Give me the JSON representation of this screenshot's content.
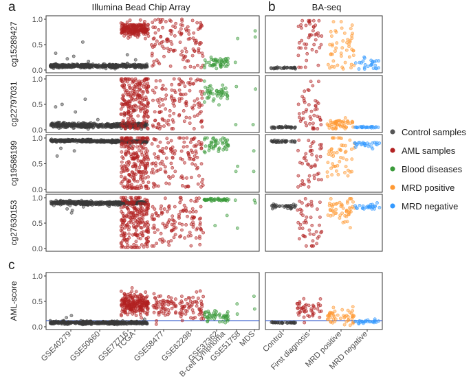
{
  "panel_labels": {
    "a": "a",
    "b": "b",
    "c": "c"
  },
  "titles": {
    "illumina": "Illumina Bead Chip Array",
    "baseq": "BA-seq"
  },
  "legend": [
    {
      "label": "Control samples",
      "color": "#555555"
    },
    {
      "label": "AML samples",
      "color": "#b22222"
    },
    {
      "label": "Blood diseases",
      "color": "#3a9a3a"
    },
    {
      "label": "MRD positive",
      "color": "#ff9933"
    },
    {
      "label": "MRD negative",
      "color": "#3399ff"
    }
  ],
  "chart_data": {
    "type": "scatter",
    "title": "Illumina Bead Chip Array / BA-seq methylation strip plots",
    "groups_left": [
      "GSE40279",
      "GSE50660",
      "GSE77716",
      "TCGA",
      "GSE58477",
      "GSE62298",
      "GSE37362",
      "GSE51758",
      "MDS"
    ],
    "groups_left_labels": [
      "GSE40279",
      "GSE50660",
      "GSE77716",
      "TCGA",
      "GSE58477",
      "GSE62298",
      "GSE37362",
      "B-cell Lymphoma",
      "GSE51758",
      "MDS"
    ],
    "groups_right": [
      "Control",
      "First diagnosis",
      "MRD positive",
      "MRD negative"
    ],
    "group_category_left": [
      "Control samples",
      "Control samples",
      "Control samples",
      "AML samples",
      "AML samples",
      "AML samples",
      "Blood diseases",
      "Blood diseases",
      "Blood diseases"
    ],
    "group_category_right": [
      "Control samples",
      "AML samples",
      "MRD positive",
      "MRD negative"
    ],
    "y_ticks": [
      0.0,
      0.5,
      1.0
    ],
    "y_tick_labels": [
      "0.0",
      "0.5",
      "1.0"
    ],
    "rows": [
      {
        "ylabel": "cg15289427",
        "ylim": [
          0,
          1
        ],
        "left": [
          {
            "n": 180,
            "center": 0.08,
            "spread": 0.03,
            "outliers": [
              0.55,
              0.33,
              0.27,
              0.22
            ]
          },
          {
            "n": 130,
            "center": 0.08,
            "spread": 0.025,
            "outliers": [
              0.17
            ]
          },
          {
            "n": 150,
            "center": 0.08,
            "spread": 0.028,
            "outliers": [
              0.3,
              0.2
            ]
          },
          {
            "n": 220,
            "center": 0.8,
            "spread": 0.1,
            "spreadLow": 0.3,
            "min": 0.3,
            "max": 1.0
          },
          {
            "n": 60,
            "center": 0.6,
            "spread": 0.3,
            "min": 0.05,
            "max": 1.0
          },
          {
            "n": 60,
            "center": 0.6,
            "spread": 0.3,
            "min": 0.05,
            "max": 1.0
          },
          {
            "n": 45,
            "center": 0.15,
            "spread": 0.1,
            "min": 0.03,
            "max": 0.35
          },
          {
            "n": 2,
            "center": 0.5,
            "spread": 0.2,
            "fixed": [
              0.62,
              0.15
            ]
          },
          {
            "n": 2,
            "center": 0.7,
            "spread": 0.1,
            "fixed": [
              0.77,
              0.65
            ]
          }
        ],
        "right": [
          {
            "n": 35,
            "center": 0.04,
            "spread": 0.015
          },
          {
            "n": 45,
            "center": 0.75,
            "spread": 0.25,
            "min": 0.05,
            "max": 0.97
          },
          {
            "n": 50,
            "center": 0.35,
            "spread": 0.3,
            "min": 0.02,
            "max": 0.95
          },
          {
            "n": 25,
            "center": 0.12,
            "spread": 0.1,
            "min": 0.02,
            "max": 0.35
          }
        ]
      },
      {
        "ylabel": "cg22797031",
        "ylim": [
          0,
          1
        ],
        "left": [
          {
            "n": 180,
            "center": 0.09,
            "spread": 0.04,
            "outliers": [
              0.6,
              0.5,
              0.45,
              0.35
            ]
          },
          {
            "n": 130,
            "center": 0.08,
            "spread": 0.03,
            "outliers": [
              0.2
            ]
          },
          {
            "n": 150,
            "center": 0.09,
            "spread": 0.035,
            "outliers": [
              0.38,
              0.3
            ]
          },
          {
            "n": 220,
            "center": 0.6,
            "spread": 0.35,
            "min": 0.02,
            "max": 1.0
          },
          {
            "n": 60,
            "center": 0.55,
            "spread": 0.3,
            "min": 0.02,
            "max": 1.0
          },
          {
            "n": 60,
            "center": 0.55,
            "spread": 0.3,
            "min": 0.02,
            "max": 1.0
          },
          {
            "n": 45,
            "center": 0.7,
            "spread": 0.15,
            "min": 0.3,
            "max": 0.97
          },
          {
            "n": 2,
            "center": 0.5,
            "spread": 0.2,
            "fixed": [
              0.85,
              0.1
            ]
          },
          {
            "n": 2,
            "center": 0.7,
            "spread": 0.1,
            "fixed": [
              0.8,
              0.1
            ]
          }
        ],
        "right": [
          {
            "n": 35,
            "center": 0.05,
            "spread": 0.015
          },
          {
            "n": 45,
            "center": 0.35,
            "spread": 0.3,
            "min": 0.02,
            "max": 0.95
          },
          {
            "n": 50,
            "center": 0.1,
            "spread": 0.12,
            "min": 0.02,
            "max": 0.95
          },
          {
            "n": 25,
            "center": 0.05,
            "spread": 0.01,
            "min": 0.03,
            "max": 0.07
          }
        ]
      },
      {
        "ylabel": "cg19586199",
        "ylim": [
          0,
          1
        ],
        "left": [
          {
            "n": 180,
            "center": 0.95,
            "spread": 0.02,
            "outliers": [
              0.65,
              0.75,
              0.8
            ]
          },
          {
            "n": 130,
            "center": 0.94,
            "spread": 0.02
          },
          {
            "n": 150,
            "center": 0.93,
            "spread": 0.02,
            "outliers": [
              0.85
            ]
          },
          {
            "n": 220,
            "center": 0.6,
            "spread": 0.35,
            "min": 0.02,
            "max": 1.0
          },
          {
            "n": 60,
            "center": 0.55,
            "spread": 0.3,
            "min": 0.05,
            "max": 1.0
          },
          {
            "n": 60,
            "center": 0.55,
            "spread": 0.3,
            "min": 0.05,
            "max": 1.0
          },
          {
            "n": 45,
            "center": 0.88,
            "spread": 0.12,
            "min": 0.25,
            "max": 1.0
          },
          {
            "n": 2,
            "center": 0.5,
            "spread": 0.2,
            "fixed": [
              0.45,
              0.35
            ]
          },
          {
            "n": 2,
            "center": 0.7,
            "spread": 0.1,
            "fixed": [
              0.75,
              0.35
            ]
          }
        ],
        "right": [
          {
            "n": 35,
            "center": 0.93,
            "spread": 0.02
          },
          {
            "n": 45,
            "center": 0.6,
            "spread": 0.3,
            "min": 0.05,
            "max": 1.0
          },
          {
            "n": 50,
            "center": 0.75,
            "spread": 0.25,
            "min": 0.05,
            "max": 1.0
          },
          {
            "n": 25,
            "center": 0.88,
            "spread": 0.06,
            "min": 0.7,
            "max": 0.98
          }
        ]
      },
      {
        "ylabel": "cg27630153",
        "ylim": [
          0,
          1
        ],
        "left": [
          {
            "n": 180,
            "center": 0.9,
            "spread": 0.03,
            "outliers": [
              0.7,
              0.75,
              0.78
            ]
          },
          {
            "n": 130,
            "center": 0.89,
            "spread": 0.025,
            "outliers": [
              0.82
            ]
          },
          {
            "n": 150,
            "center": 0.9,
            "spread": 0.025,
            "outliers": [
              0.8,
              0.83
            ]
          },
          {
            "n": 220,
            "center": 0.55,
            "spread": 0.35,
            "min": 0.02,
            "max": 1.0
          },
          {
            "n": 60,
            "center": 0.55,
            "spread": 0.3,
            "min": 0.05,
            "max": 1.0
          },
          {
            "n": 60,
            "center": 0.55,
            "spread": 0.3,
            "min": 0.05,
            "max": 1.0
          },
          {
            "n": 45,
            "center": 0.96,
            "spread": 0.02,
            "outliers": [
              0.45,
              0.65
            ]
          },
          {
            "n": 2,
            "center": 0.5,
            "spread": 0.2,
            "fixed": [
              0.95,
              0.4
            ]
          },
          {
            "n": 2,
            "center": 0.7,
            "spread": 0.1,
            "fixed": [
              0.95,
              0.9
            ]
          }
        ],
        "right": [
          {
            "n": 35,
            "center": 0.83,
            "spread": 0.03
          },
          {
            "n": 45,
            "center": 0.55,
            "spread": 0.3,
            "min": 0.05,
            "max": 0.98
          },
          {
            "n": 50,
            "center": 0.75,
            "spread": 0.22,
            "min": 0.1,
            "max": 0.98
          },
          {
            "n": 25,
            "center": 0.82,
            "spread": 0.05,
            "min": 0.7,
            "max": 0.95
          }
        ]
      },
      {
        "ylabel": "AML-score",
        "ylim": [
          0,
          1
        ],
        "threshold": 0.12,
        "left": [
          {
            "n": 180,
            "center": 0.08,
            "spread": 0.025,
            "outliers": [
              0.22,
              0.18
            ]
          },
          {
            "n": 130,
            "center": 0.08,
            "spread": 0.02
          },
          {
            "n": 150,
            "center": 0.08,
            "spread": 0.025,
            "outliers": [
              0.15
            ]
          },
          {
            "n": 220,
            "center": 0.45,
            "spread": 0.18,
            "min": 0.08,
            "max": 0.9
          },
          {
            "n": 60,
            "center": 0.4,
            "spread": 0.18,
            "min": 0.05,
            "max": 0.85
          },
          {
            "n": 60,
            "center": 0.4,
            "spread": 0.2,
            "min": 0.05,
            "max": 0.9
          },
          {
            "n": 45,
            "center": 0.2,
            "spread": 0.08,
            "min": 0.08,
            "max": 0.45
          },
          {
            "n": 2,
            "center": 0.5,
            "spread": 0.2,
            "fixed": [
              0.45,
              0.25
            ]
          },
          {
            "n": 2,
            "center": 0.7,
            "spread": 0.1,
            "fixed": [
              0.6,
              0.35
            ]
          }
        ],
        "right": [
          {
            "n": 35,
            "center": 0.08,
            "spread": 0.01
          },
          {
            "n": 45,
            "center": 0.35,
            "spread": 0.18,
            "min": 0.08,
            "max": 0.72
          },
          {
            "n": 50,
            "center": 0.2,
            "spread": 0.15,
            "min": 0.03,
            "max": 0.7
          },
          {
            "n": 25,
            "center": 0.1,
            "spread": 0.03,
            "min": 0.03,
            "max": 0.2
          }
        ]
      }
    ]
  }
}
